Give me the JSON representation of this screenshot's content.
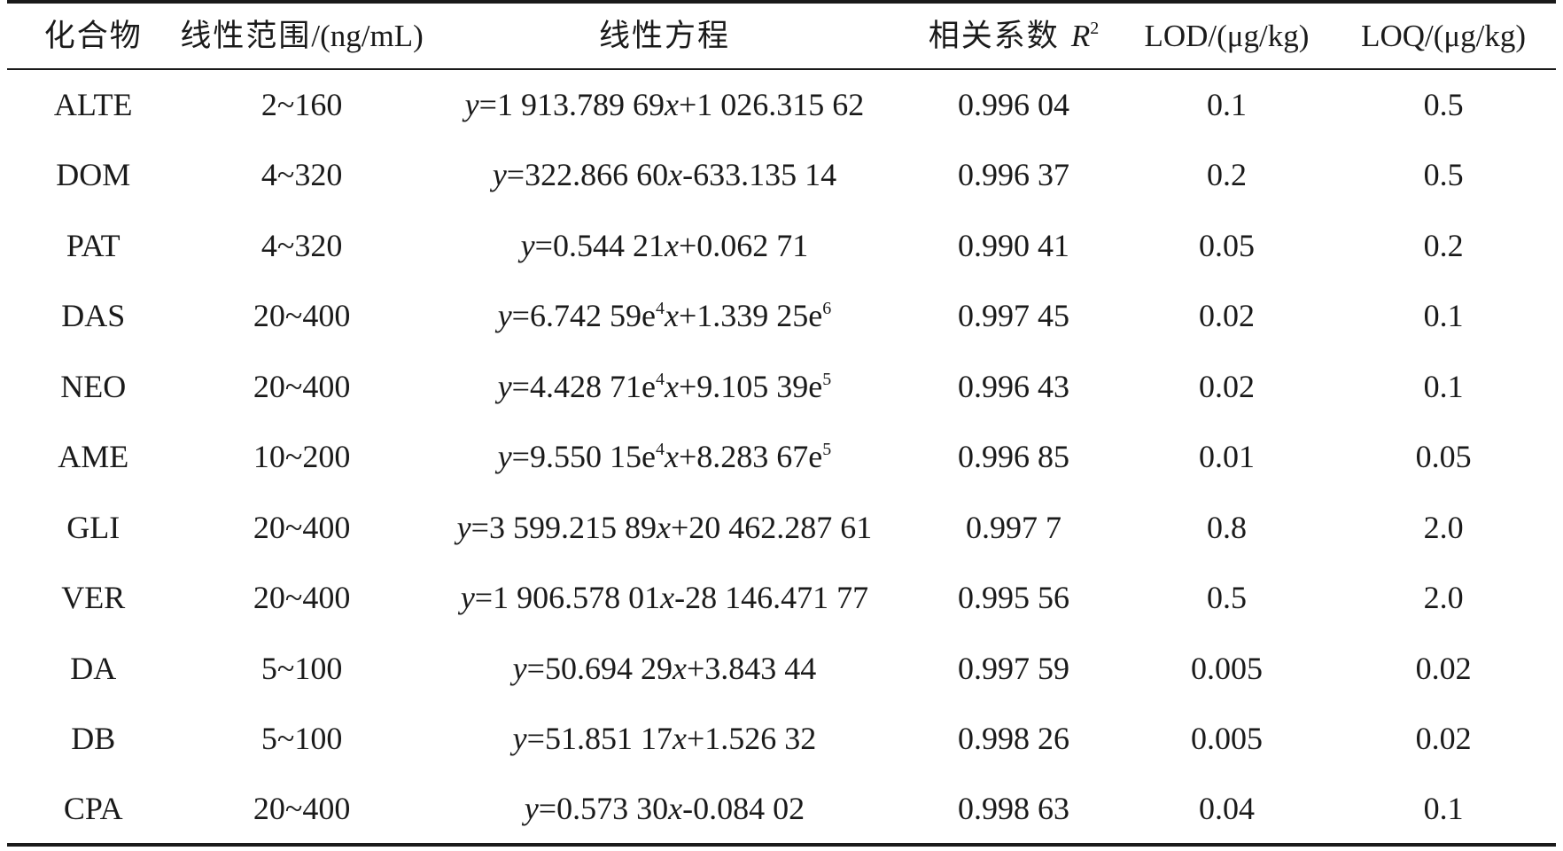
{
  "table": {
    "headers": {
      "compound": "化合物",
      "linear_range_cn": "线性范围",
      "linear_range_unit": "/(ng/mL)",
      "equation": "线性方程",
      "r2_cn": "相关系数 ",
      "r2_symbol": "R",
      "r2_sup": "2",
      "lod": "LOD/(μg/kg)",
      "loq": "LOQ/(μg/kg)"
    },
    "rows": [
      {
        "compound": "ALTE",
        "range": "2~160",
        "eq": [
          [
            "y",
            "i"
          ],
          [
            "=1 913.789 69",
            ""
          ],
          [
            "x",
            "i"
          ],
          [
            "+1 026.315 62",
            ""
          ]
        ],
        "r2": "0.996 04",
        "lod": "0.1",
        "loq": "0.5"
      },
      {
        "compound": "DOM",
        "range": "4~320",
        "eq": [
          [
            "y",
            "i"
          ],
          [
            "=322.866 60",
            ""
          ],
          [
            "x",
            "i"
          ],
          [
            "-633.135 14",
            ""
          ]
        ],
        "r2": "0.996 37",
        "lod": "0.2",
        "loq": "0.5"
      },
      {
        "compound": "PAT",
        "range": "4~320",
        "eq": [
          [
            "y",
            "i"
          ],
          [
            "=0.544 21",
            ""
          ],
          [
            "x",
            "i"
          ],
          [
            "+0.062 71",
            ""
          ]
        ],
        "r2": "0.990 41",
        "lod": "0.05",
        "loq": "0.2"
      },
      {
        "compound": "DAS",
        "range": "20~400",
        "eq": [
          [
            "y",
            "i"
          ],
          [
            "=6.742 59e",
            ""
          ],
          [
            "4",
            "s"
          ],
          [
            "x",
            "i"
          ],
          [
            "+1.339 25e",
            ""
          ],
          [
            "6",
            "s"
          ]
        ],
        "r2": "0.997 45",
        "lod": "0.02",
        "loq": "0.1"
      },
      {
        "compound": "NEO",
        "range": "20~400",
        "eq": [
          [
            "y",
            "i"
          ],
          [
            "=4.428 71e",
            ""
          ],
          [
            "4",
            "s"
          ],
          [
            "x",
            "i"
          ],
          [
            "+9.105 39e",
            ""
          ],
          [
            "5",
            "s"
          ]
        ],
        "r2": "0.996 43",
        "lod": "0.02",
        "loq": "0.1"
      },
      {
        "compound": "AME",
        "range": "10~200",
        "eq": [
          [
            "y",
            "i"
          ],
          [
            "=9.550 15e",
            ""
          ],
          [
            "4",
            "s"
          ],
          [
            "x",
            "i"
          ],
          [
            "+8.283 67e",
            ""
          ],
          [
            "5",
            "s"
          ]
        ],
        "r2": "0.996 85",
        "lod": "0.01",
        "loq": "0.05"
      },
      {
        "compound": "GLI",
        "range": "20~400",
        "eq": [
          [
            "y",
            "i"
          ],
          [
            "=3 599.215 89",
            ""
          ],
          [
            "x",
            "i"
          ],
          [
            "+20 462.287 61",
            ""
          ]
        ],
        "r2": "0.997 7",
        "lod": "0.8",
        "loq": "2.0"
      },
      {
        "compound": "VER",
        "range": "20~400",
        "eq": [
          [
            "y",
            "i"
          ],
          [
            "=1 906.578 01",
            ""
          ],
          [
            "x",
            "i"
          ],
          [
            "-28 146.471 77",
            ""
          ]
        ],
        "r2": "0.995 56",
        "lod": "0.5",
        "loq": "2.0"
      },
      {
        "compound": "DA",
        "range": "5~100",
        "eq": [
          [
            "y",
            "i"
          ],
          [
            "=50.694 29",
            ""
          ],
          [
            "x",
            "i"
          ],
          [
            "+3.843 44",
            ""
          ]
        ],
        "r2": "0.997 59",
        "lod": "0.005",
        "loq": "0.02"
      },
      {
        "compound": "DB",
        "range": "5~100",
        "eq": [
          [
            "y",
            "i"
          ],
          [
            "=51.851 17",
            ""
          ],
          [
            "x",
            "i"
          ],
          [
            "+1.526 32",
            ""
          ]
        ],
        "r2": "0.998 26",
        "lod": "0.005",
        "loq": "0.02"
      },
      {
        "compound": "CPA",
        "range": "20~400",
        "eq": [
          [
            "y",
            "i"
          ],
          [
            "=0.573 30",
            ""
          ],
          [
            "x",
            "i"
          ],
          [
            "-0.084 02",
            ""
          ]
        ],
        "r2": "0.998 63",
        "lod": "0.04",
        "loq": "0.1"
      }
    ]
  }
}
